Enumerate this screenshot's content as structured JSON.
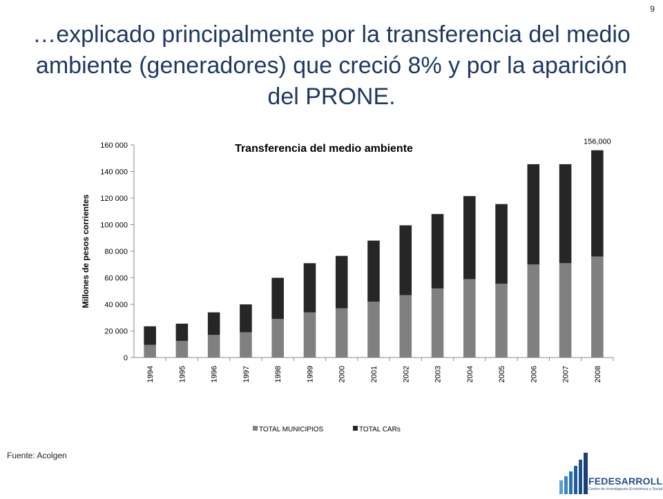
{
  "page_number": "9",
  "slide_title": "…explicado principalmente por la transferencia del medio ambiente (generadores) que creció 8% y por la aparición del PRONE.",
  "source": "Fuente: Acolgen",
  "logo": {
    "name": "FEDESARROLLO",
    "subtitle": "Centro de Investigación Económica y Social",
    "icon": "bar-chart-logo-icon"
  },
  "chart_data": {
    "type": "bar",
    "stacked": true,
    "title": "Transferencia del medio ambiente",
    "ylabel": "Millones de pesos corrientes",
    "xlabel": "",
    "ylim": [
      0,
      160000
    ],
    "yticks": [
      0,
      20000,
      40000,
      60000,
      80000,
      100000,
      120000,
      140000,
      160000
    ],
    "ytick_labels": [
      "0",
      "20 000",
      "40 000",
      "60 000",
      "80 000",
      "100 000",
      "120 000",
      "140 000",
      "160 000"
    ],
    "categories": [
      "1994",
      "1995",
      "1996",
      "1997",
      "1998",
      "1999",
      "2000",
      "2001",
      "2002",
      "2003",
      "2004",
      "2005",
      "2006",
      "2007",
      "2008"
    ],
    "series": [
      {
        "name": "TOTAL MUNICIPIOS",
        "color": "#808080",
        "values": [
          9500,
          12500,
          17000,
          19000,
          29000,
          34000,
          37000,
          42000,
          47000,
          52000,
          59000,
          55500,
          70000,
          71000,
          76000
        ]
      },
      {
        "name": "TOTAL CARs",
        "color": "#262626",
        "values": [
          14000,
          13000,
          17000,
          21000,
          31000,
          37000,
          39500,
          46000,
          52500,
          56000,
          62500,
          60000,
          75500,
          74500,
          80000
        ]
      }
    ],
    "annotations": [
      {
        "category": "2008",
        "text": "156,000"
      }
    ],
    "legend_position": "bottom",
    "grid": false
  }
}
